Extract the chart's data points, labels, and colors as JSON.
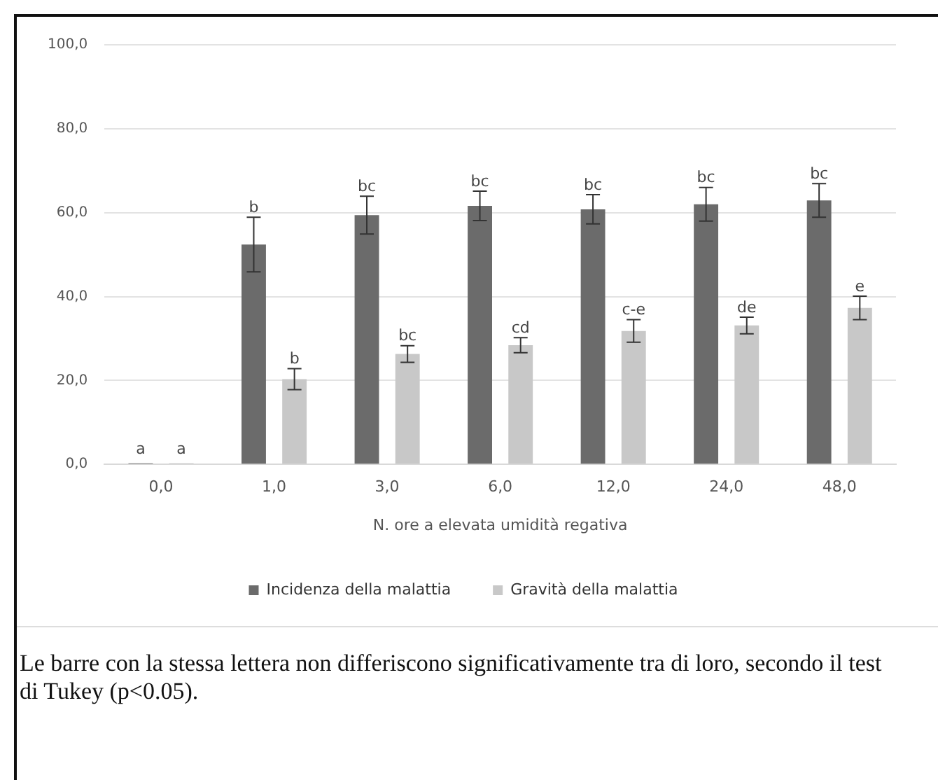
{
  "chart_data": {
    "type": "bar",
    "xlabel": "N. ore a elevata umidità regativa",
    "categories": [
      "0,0",
      "1,0",
      "3,0",
      "6,0",
      "12,0",
      "24,0",
      "48,0"
    ],
    "series": [
      {
        "name": "Incidenza della malattia",
        "color": "#6b6b6b",
        "values": [
          0.3,
          52.4,
          59.4,
          61.6,
          60.8,
          62.0,
          62.9
        ],
        "errors": [
          null,
          6.5,
          4.5,
          3.5,
          3.5,
          4.0,
          4.0
        ],
        "value_labels": [
          "a",
          "b",
          "bc",
          "bc",
          "bc",
          "bc",
          "bc"
        ]
      },
      {
        "name": "Gravità della malattia",
        "color": "#c8c8c8",
        "values": [
          0.3,
          20.3,
          26.3,
          28.4,
          31.8,
          33.1,
          37.3
        ],
        "errors": [
          null,
          2.5,
          2.0,
          1.8,
          2.7,
          2.0,
          2.8
        ],
        "value_labels": [
          "a",
          "b",
          "bc",
          "cd",
          "c-e",
          "de",
          "e"
        ]
      }
    ],
    "ylim": [
      0,
      100
    ],
    "yticks": [
      {
        "value": 0,
        "label": "0,0"
      },
      {
        "value": 20,
        "label": "20,0"
      },
      {
        "value": 40,
        "label": "40,0"
      },
      {
        "value": 60,
        "label": "60,0"
      },
      {
        "value": 80,
        "label": "80,0"
      },
      {
        "value": 100,
        "label": "100,0"
      }
    ],
    "grid": "y",
    "legend": "bottom",
    "annotations": [
      "Le barre con la stessa lettera non differiscono significativamente tra di loro, secondo il test di Tukey (p<0.05)."
    ]
  }
}
